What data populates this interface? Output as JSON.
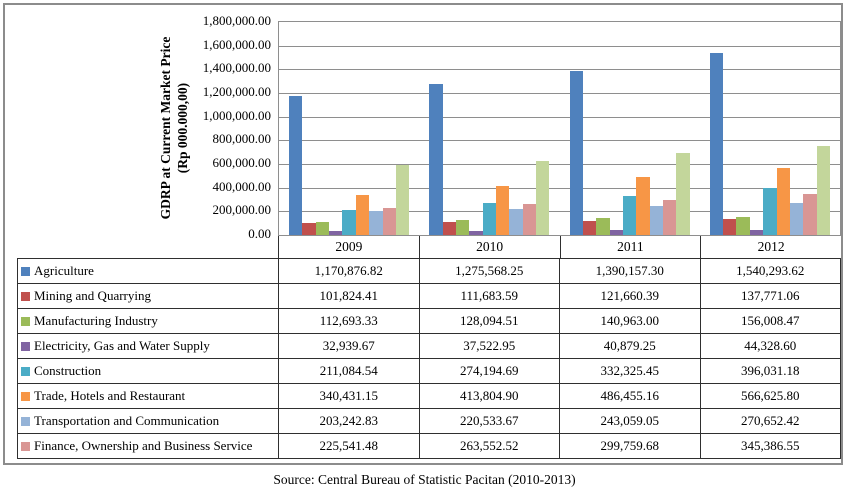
{
  "chart": {
    "y_axis_title_line1": "GDRP at Current Market Price",
    "y_axis_title_line2": "(Rp 000.000,00)",
    "y_ticks": [
      "1,800,000.00",
      "1,600,000.00",
      "1,400,000.00",
      "1,200,000.00",
      "1,000,000.00",
      "800,000.00",
      "600,000.00",
      "400,000.00",
      "200,000.00",
      "0.00"
    ]
  },
  "chart_data": {
    "type": "bar",
    "title": "",
    "xlabel": "",
    "ylabel": "GDRP at Current Market Price (Rp 000.000,00)",
    "ylim": [
      0,
      1800000
    ],
    "y_tick_step": 200000,
    "grid": true,
    "legend_position": "data-table-first-column",
    "categories": [
      "2009",
      "2010",
      "2011",
      "2012"
    ],
    "series": [
      {
        "name": "Agriculture",
        "color": "#4F81BD",
        "values": [
          1170876.82,
          1275568.25,
          1390157.3,
          1540293.62
        ]
      },
      {
        "name": "Mining and Quarrying",
        "color": "#C0504D",
        "values": [
          101824.41,
          111683.59,
          121660.39,
          137771.06
        ]
      },
      {
        "name": "Manufacturing Industry",
        "color": "#9BBB59",
        "values": [
          112693.33,
          128094.51,
          140963.0,
          156008.47
        ]
      },
      {
        "name": "Electricity, Gas and Water Supply",
        "color": "#8064A2",
        "values": [
          32939.67,
          37522.95,
          40879.25,
          44328.6
        ]
      },
      {
        "name": "Construction",
        "color": "#4BACC6",
        "values": [
          211084.54,
          274194.69,
          332325.45,
          396031.18
        ]
      },
      {
        "name": "Trade, Hotels and Restaurant",
        "color": "#F79646",
        "values": [
          340431.15,
          413804.9,
          486455.16,
          566625.8
        ]
      },
      {
        "name": "Transportation and Communication",
        "color": "#95B3D7",
        "values": [
          203242.83,
          220533.67,
          243059.05,
          270652.42
        ]
      },
      {
        "name": "Finance, Ownership and Business Service",
        "color": "#D99694",
        "values": [
          225541.48,
          263552.52,
          299759.68,
          345386.55
        ]
      },
      {
        "name": "",
        "color": "#C3D69B",
        "values": [
          588000,
          628000,
          692000,
          752000
        ],
        "estimated": true,
        "note": "unlabeled light-green series visible in chart but absent from data table; values estimated from gridlines"
      }
    ]
  },
  "table": {
    "year_headers": [
      "2009",
      "2010",
      "2011",
      "2012"
    ],
    "rows": [
      {
        "label": "Agriculture",
        "values": [
          "1,170,876.82",
          "1,275,568.25",
          "1,390,157.30",
          "1,540,293.62"
        ]
      },
      {
        "label": "Mining and Quarrying",
        "values": [
          "101,824.41",
          "111,683.59",
          "121,660.39",
          "137,771.06"
        ]
      },
      {
        "label": "Manufacturing Industry",
        "values": [
          "112,693.33",
          "128,094.51",
          "140,963.00",
          "156,008.47"
        ]
      },
      {
        "label": "Electricity, Gas and Water Supply",
        "values": [
          "32,939.67",
          "37,522.95",
          "40,879.25",
          "44,328.60"
        ]
      },
      {
        "label": "Construction",
        "values": [
          "211,084.54",
          "274,194.69",
          "332,325.45",
          "396,031.18"
        ]
      },
      {
        "label": "Trade, Hotels and Restaurant",
        "values": [
          "340,431.15",
          "413,804.90",
          "486,455.16",
          "566,625.80"
        ]
      },
      {
        "label": "Transportation and Communication",
        "values": [
          "203,242.83",
          "220,533.67",
          "243,059.05",
          "270,652.42"
        ]
      },
      {
        "label": "Finance, Ownership and Business Service",
        "values": [
          "225,541.48",
          "263,552.52",
          "299,759.68",
          "345,386.55"
        ]
      }
    ]
  },
  "footer": {
    "source_note": "Source: Central Bureau of Statistic Pacitan (2010-2013)"
  },
  "colors": {
    "grid_line": "#8e8e8e",
    "frame_border": "#8c8c8c",
    "table_border": "#2f2f2f"
  }
}
